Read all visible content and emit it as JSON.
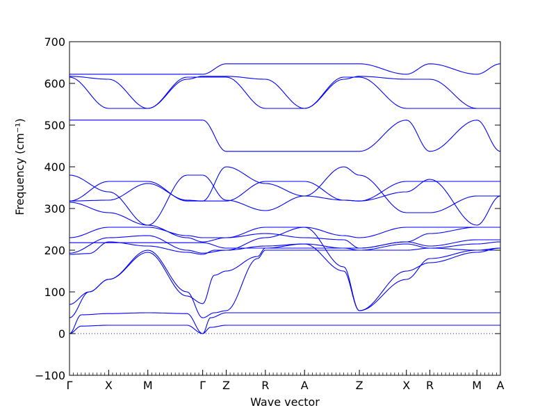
{
  "chart_data": {
    "type": "line",
    "xlabel": "Wave vector",
    "ylabel": "Frequency (cm⁻¹)",
    "ylim": [
      -100,
      700
    ],
    "yticks": [
      -100,
      0,
      100,
      200,
      300,
      400,
      500,
      600,
      700
    ],
    "kpoints": [
      {
        "label": "Γ",
        "x": 0
      },
      {
        "label": "X",
        "x": 1
      },
      {
        "label": "M",
        "x": 2
      },
      {
        "label": "Γ",
        "x": 3.4
      },
      {
        "label": "Z",
        "x": 4
      },
      {
        "label": "R",
        "x": 5
      },
      {
        "label": "A",
        "x": 6
      },
      {
        "label": "Z",
        "x": 7.4
      },
      {
        "label": "X",
        "x": 8.6
      },
      {
        "label": "R",
        "x": 9.2
      },
      {
        "label": "M",
        "x": 10.4
      },
      {
        "label": "A",
        "x": 11
      }
    ],
    "xlim": [
      0,
      11
    ],
    "series": [
      {
        "x": [
          0,
          0.3,
          1,
          2,
          3,
          3.4,
          3.6,
          4,
          5,
          6,
          7,
          7.4,
          8.6,
          9.2,
          10.4,
          11
        ],
        "y": [
          0,
          18,
          20,
          20,
          20,
          0,
          15,
          20,
          20,
          20,
          20,
          20,
          20,
          20,
          20,
          20
        ]
      },
      {
        "x": [
          0,
          0.3,
          1,
          2,
          3,
          3.4,
          3.6,
          4,
          5,
          6,
          7,
          7.4,
          8.6,
          9.2,
          10.4,
          11
        ],
        "y": [
          0,
          45,
          48,
          50,
          48,
          0,
          38,
          50,
          50,
          50,
          50,
          50,
          50,
          50,
          50,
          50
        ]
      },
      {
        "x": [
          0,
          0.5,
          1,
          2,
          3,
          3.4,
          3.7,
          4,
          4.8,
          5,
          6,
          7,
          7.4,
          8.6,
          9.2,
          10.4,
          11
        ],
        "y": [
          38,
          100,
          130,
          200,
          100,
          38,
          50,
          55,
          180,
          200,
          200,
          200,
          200,
          200,
          205,
          200,
          200
        ]
      },
      {
        "x": [
          0,
          0.5,
          1,
          2,
          3,
          3.4,
          3.7,
          4,
          4.8,
          5,
          6,
          7,
          7.4,
          8.6,
          9.2,
          10.4,
          11
        ],
        "y": [
          70,
          100,
          130,
          195,
          90,
          72,
          140,
          150,
          185,
          205,
          215,
          150,
          55,
          130,
          180,
          200,
          205
        ]
      },
      {
        "x": [
          0,
          0.5,
          1,
          2,
          3,
          3.4,
          3.7,
          4,
          5,
          6,
          7,
          7.4,
          8.6,
          9.2,
          10.4,
          11
        ],
        "y": [
          190,
          192,
          220,
          210,
          195,
          190,
          200,
          200,
          230,
          255,
          160,
          55,
          150,
          170,
          195,
          205
        ]
      },
      {
        "x": [
          0,
          1,
          2,
          3,
          3.4,
          4,
          5,
          6,
          7,
          7.4,
          8.6,
          9.2,
          10.4,
          11
        ],
        "y": [
          193,
          230,
          235,
          200,
          193,
          200,
          210,
          215,
          205,
          200,
          215,
          205,
          215,
          220
        ]
      },
      {
        "x": [
          0,
          1,
          2,
          3,
          3.4,
          4,
          5,
          6,
          7,
          7.4,
          8.6,
          9.2,
          10.4,
          11
        ],
        "y": [
          218,
          218,
          218,
          218,
          218,
          205,
          205,
          205,
          205,
          205,
          220,
          210,
          225,
          225
        ]
      },
      {
        "x": [
          0,
          1,
          2,
          3,
          3.4,
          4,
          5,
          6,
          7,
          7.4,
          8.6,
          9.2,
          10.4,
          11
        ],
        "y": [
          230,
          255,
          255,
          235,
          230,
          230,
          255,
          255,
          235,
          230,
          255,
          255,
          255,
          255
        ]
      },
      {
        "x": [
          0,
          1,
          2,
          3,
          3.4,
          4,
          5,
          6,
          7,
          7.4,
          8.6,
          9.2,
          10.4,
          11
        ],
        "y": [
          315,
          290,
          260,
          230,
          220,
          230,
          240,
          230,
          225,
          205,
          220,
          240,
          255,
          255
        ]
      },
      {
        "x": [
          0,
          1,
          2,
          3,
          3.4,
          4,
          5,
          6,
          7,
          7.4,
          8.6,
          9.2,
          10.4,
          11
        ],
        "y": [
          318,
          365,
          365,
          318,
          318,
          318,
          365,
          365,
          320,
          318,
          365,
          365,
          365,
          365
        ]
      },
      {
        "x": [
          0,
          1,
          2,
          3,
          3.4,
          4,
          5,
          6,
          7,
          7.4,
          8.6,
          9.2,
          10.4,
          11
        ],
        "y": [
          380,
          340,
          260,
          380,
          380,
          320,
          295,
          330,
          400,
          380,
          290,
          290,
          330,
          330
        ]
      },
      {
        "x": [
          0,
          1,
          2,
          3,
          3.4,
          4,
          5,
          6,
          7,
          7.4,
          8.6,
          9.2,
          10.4,
          11
        ],
        "y": [
          318,
          320,
          360,
          320,
          318,
          400,
          360,
          330,
          320,
          318,
          340,
          370,
          260,
          330
        ]
      },
      {
        "x": [
          0,
          1,
          2,
          3,
          3.4,
          4,
          5,
          6,
          7,
          7.4,
          8.6,
          9.2,
          10.4,
          11
        ],
        "y": [
          512,
          512,
          512,
          512,
          512,
          437,
          437,
          437,
          437,
          437,
          512,
          437,
          512,
          437
        ]
      },
      {
        "x": [
          0,
          1,
          2,
          3,
          3.4,
          4,
          5,
          6,
          7,
          7.4,
          8.6,
          9.2,
          10.4,
          11
        ],
        "y": [
          615,
          540,
          540,
          615,
          615,
          615,
          540,
          540,
          615,
          615,
          540,
          540,
          540,
          540
        ]
      },
      {
        "x": [
          0,
          1,
          2,
          3,
          3.4,
          4,
          5,
          6,
          7,
          7.4,
          8.6,
          9.2,
          10.4,
          11
        ],
        "y": [
          617,
          610,
          540,
          610,
          617,
          617,
          610,
          540,
          610,
          617,
          610,
          610,
          540,
          540
        ]
      },
      {
        "x": [
          0,
          1,
          2,
          3,
          3.4,
          4,
          5,
          6,
          7,
          7.4,
          8.6,
          9.2,
          10.4,
          11
        ],
        "y": [
          622,
          622,
          622,
          622,
          622,
          647,
          647,
          647,
          647,
          647,
          622,
          647,
          622,
          647
        ]
      }
    ],
    "line_color": "#0000ff",
    "grid": false,
    "zero_line": true
  }
}
